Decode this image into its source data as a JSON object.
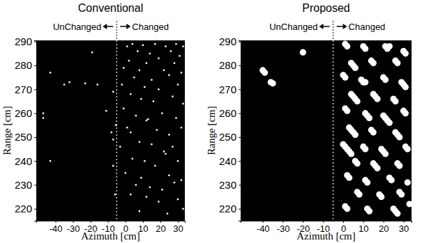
{
  "chart_data": [
    {
      "type": "scatter",
      "title": "Conventional",
      "x_label": "Azimuth [cm]",
      "y_label": "Range [cm]",
      "xlim": [
        -51,
        34
      ],
      "ylim": [
        215,
        290.5
      ],
      "xticks": [
        -40,
        -30,
        -20,
        -10,
        0,
        10,
        20,
        30
      ],
      "yticks": [
        220,
        230,
        240,
        250,
        260,
        270,
        280,
        290
      ],
      "color": "#ffffff",
      "marker": "square",
      "divider": {
        "x": -5,
        "left_label": "UnChanged",
        "right_label": "Changed"
      },
      "x": [
        -19,
        -43,
        -35,
        -32,
        -23,
        -16,
        -47,
        -47,
        -11,
        -7,
        -43,
        -8,
        -7,
        -5.5,
        -7,
        -6,
        1,
        4,
        10,
        17,
        23,
        29,
        33,
        7,
        14,
        26,
        31,
        2,
        12,
        19,
        28,
        -1,
        8,
        22,
        32,
        5,
        15,
        25,
        -2,
        11,
        19,
        30,
        3,
        9,
        27,
        16,
        33,
        -1,
        6,
        12,
        13,
        21,
        29,
        1,
        3,
        18,
        25,
        32,
        8,
        15,
        -3,
        27,
        22,
        23,
        4,
        11,
        30,
        17,
        0,
        9,
        25,
        32,
        6,
        14,
        21,
        28,
        3,
        12,
        19,
        30,
        8,
        24,
        33
      ],
      "y": [
        285.5,
        277,
        272,
        273,
        272.5,
        272,
        260,
        258,
        261,
        269,
        240,
        252,
        249,
        255,
        238,
        226,
        288,
        289,
        288.5,
        289,
        288,
        289,
        288,
        286,
        285,
        286,
        284,
        282,
        281,
        283,
        281,
        279,
        278,
        278,
        277,
        275,
        274,
        276,
        272,
        271,
        270,
        272,
        268,
        266,
        267,
        265,
        264,
        262,
        259,
        257,
        257.5,
        260,
        258,
        254,
        252,
        253,
        251,
        254,
        248,
        247,
        246,
        246,
        244,
        243,
        241,
        240,
        240,
        238,
        235,
        233,
        234,
        232,
        230,
        229,
        228,
        231,
        226,
        225,
        223,
        224,
        219,
        218,
        220
      ]
    },
    {
      "type": "scatter",
      "title": "Proposed",
      "x_label": "Azimuth [cm]",
      "y_label": "Range [cm]",
      "xlim": [
        -51,
        34
      ],
      "ylim": [
        215,
        290.5
      ],
      "xticks": [
        -40,
        -30,
        -20,
        -10,
        0,
        10,
        20,
        30
      ],
      "yticks": [
        220,
        230,
        240,
        250,
        260,
        270,
        280,
        290
      ],
      "color": "#ffffff",
      "marker": "circle",
      "divider": {
        "x": -5,
        "left_label": "UnChanged",
        "right_label": "Changed"
      },
      "x": [
        -20,
        -40,
        -39,
        -36,
        -35,
        1,
        2,
        10,
        11,
        21,
        22,
        23,
        30,
        31,
        4,
        5,
        6,
        14,
        15,
        26,
        27,
        0,
        1,
        9,
        10,
        11,
        20,
        21,
        29,
        30,
        31,
        4,
        5,
        6,
        7,
        15,
        16,
        17,
        25,
        26,
        1,
        2,
        11,
        12,
        13,
        20,
        21,
        22,
        23,
        30,
        31,
        3,
        4,
        5,
        6,
        14,
        15,
        26,
        27,
        28,
        0,
        1,
        2,
        3,
        4,
        10,
        11,
        19,
        20,
        21,
        31,
        32,
        6,
        7,
        15,
        16,
        17,
        27,
        28,
        2,
        3,
        11,
        12,
        23,
        24,
        32,
        7,
        8,
        18,
        19,
        28,
        29,
        1,
        2,
        12,
        13,
        25,
        26,
        27,
        33
      ],
      "y": [
        285.5,
        278,
        277,
        273,
        272.5,
        289,
        288,
        288,
        287,
        288,
        287,
        288,
        286,
        285,
        281,
        280,
        279,
        282,
        281,
        282,
        281,
        276,
        275,
        274,
        273,
        273,
        275,
        274,
        273,
        272,
        271,
        268,
        267,
        266,
        265,
        268,
        267,
        266,
        266,
        265,
        262,
        261,
        260,
        259,
        258,
        259,
        258,
        257,
        256,
        261,
        260,
        254,
        253,
        252,
        251,
        253,
        252,
        252,
        251,
        250,
        247,
        246,
        245,
        244,
        243,
        246,
        245,
        245,
        244,
        243,
        246,
        245,
        240,
        239,
        239,
        238,
        237,
        239,
        238,
        234,
        233,
        232,
        231,
        233,
        232,
        231,
        227,
        226,
        226,
        225,
        227,
        226,
        221,
        220,
        220,
        219,
        220,
        219,
        218,
        222
      ]
    }
  ]
}
